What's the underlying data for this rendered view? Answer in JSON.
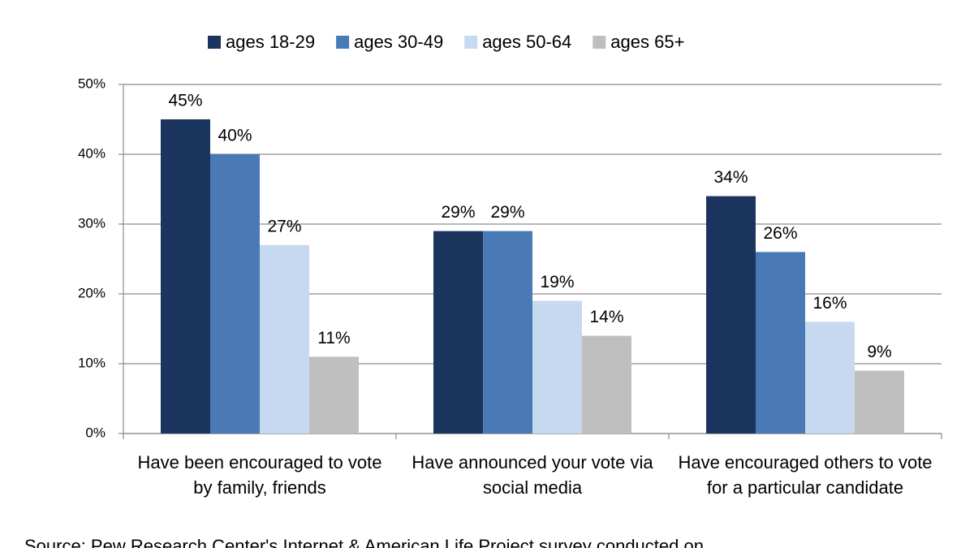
{
  "chart_data": {
    "type": "bar",
    "categories": [
      "Have been encouraged to vote by family, friends",
      "Have announced your vote via social media",
      "Have encouraged others to vote for a particular candidate"
    ],
    "series": [
      {
        "name": "ages 18-29",
        "color": "#1c355e",
        "values": [
          45,
          29,
          34
        ],
        "value_labels": [
          "45%",
          "29%",
          "34%"
        ]
      },
      {
        "name": "ages 30-49",
        "color": "#4a7ab5",
        "values": [
          40,
          29,
          26
        ],
        "value_labels": [
          "40%",
          "29%",
          "26%"
        ]
      },
      {
        "name": "ages 50-64",
        "color": "#c6d9f0",
        "values": [
          27,
          19,
          16
        ],
        "value_labels": [
          "27%",
          "19%",
          "16%"
        ]
      },
      {
        "name": "ages 65+",
        "color": "#bfbfbf",
        "values": [
          11,
          14,
          9
        ],
        "value_labels": [
          "11%",
          "14%",
          "9%"
        ]
      }
    ],
    "ylim": [
      0,
      50
    ],
    "yticks": [
      {
        "value": 0,
        "label": "0%"
      },
      {
        "value": 10,
        "label": "10%"
      },
      {
        "value": 20,
        "label": "20%"
      },
      {
        "value": 30,
        "label": "30%"
      },
      {
        "value": 40,
        "label": "40%"
      },
      {
        "value": 50,
        "label": "50%"
      }
    ],
    "grid": true,
    "legend": "top",
    "source": "Source: Pew Research Center's Internet & American Life Project survey conducted on"
  }
}
